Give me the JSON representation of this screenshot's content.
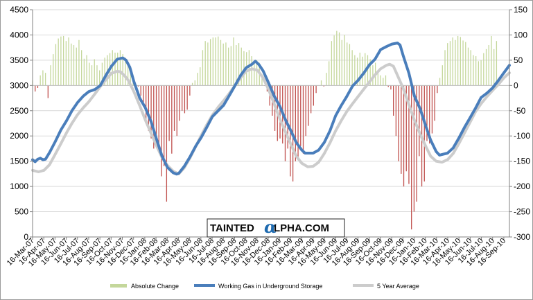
{
  "chart_data": {
    "type": "bar+line",
    "title": "",
    "left_axis": {
      "min": 0,
      "max": 4500,
      "step": 500,
      "ticks": [
        "0",
        "500",
        "1000",
        "1500",
        "2000",
        "2500",
        "3000",
        "3500",
        "4000",
        "4500"
      ]
    },
    "right_axis": {
      "min": -300,
      "max": 150,
      "step": 50,
      "ticks": [
        "-300",
        "-250",
        "-200",
        "-150",
        "-100",
        "-50",
        "0",
        "50",
        "100",
        "150"
      ]
    },
    "grid": true,
    "legend_position": "bottom",
    "x_tick_labels": [
      "16-Mar-07",
      "16-Apr-07",
      "16-May-07",
      "16-Jun-07",
      "16-Jul-07",
      "16-Aug-07",
      "16-Sep-07",
      "16-Oct-07",
      "16-Nov-07",
      "16-Dec-07",
      "16-Jan-08",
      "16-Feb-08",
      "16-Mar-08",
      "16-Apr-08",
      "16-May-08",
      "16-Jun-08",
      "16-Jul-08",
      "16-Aug-08",
      "16-Sep-08",
      "16-Oct-08",
      "16-Nov-08",
      "16-Dec-08",
      "16-Jan-09",
      "16-Feb-09",
      "16-Mar-09",
      "16-Apr-09",
      "16-May-09",
      "16-Jun-09",
      "16-Jul-09",
      "16-Aug-09",
      "16-Sep-09",
      "16-Oct-09",
      "16-Nov-09",
      "16-Dec-09",
      "16-Jan-10",
      "16-Feb-10",
      "16-Mar-10",
      "16-Apr-10",
      "16-May-10",
      "16-Jun-10",
      "16-Jul-10",
      "16-Aug-10",
      "16-Sep-10"
    ],
    "x_range": {
      "start": "2007-03-16",
      "end": "2010-10-01"
    },
    "series": [
      {
        "name": "Working Gas in Underground Storage",
        "type": "line",
        "axis": "left",
        "color": "#4a7ebb",
        "points": [
          [
            "2007-03-16",
            1530
          ],
          [
            "2007-03-23",
            1490
          ],
          [
            "2007-03-30",
            1540
          ],
          [
            "2007-04-06",
            1560
          ],
          [
            "2007-04-13",
            1530
          ],
          [
            "2007-04-20",
            1540
          ],
          [
            "2007-05-01",
            1670
          ],
          [
            "2007-05-16",
            1880
          ],
          [
            "2007-06-01",
            2120
          ],
          [
            "2007-06-16",
            2300
          ],
          [
            "2007-07-01",
            2500
          ],
          [
            "2007-07-16",
            2660
          ],
          [
            "2007-08-01",
            2790
          ],
          [
            "2007-08-16",
            2880
          ],
          [
            "2007-09-01",
            2920
          ],
          [
            "2007-09-16",
            3000
          ],
          [
            "2007-10-01",
            3200
          ],
          [
            "2007-10-16",
            3380
          ],
          [
            "2007-11-01",
            3520
          ],
          [
            "2007-11-16",
            3545
          ],
          [
            "2007-11-25",
            3500
          ],
          [
            "2007-12-05",
            3360
          ],
          [
            "2007-12-16",
            3080
          ],
          [
            "2008-01-01",
            2750
          ],
          [
            "2008-01-16",
            2560
          ],
          [
            "2008-02-01",
            2280
          ],
          [
            "2008-02-16",
            1930
          ],
          [
            "2008-03-01",
            1610
          ],
          [
            "2008-03-16",
            1380
          ],
          [
            "2008-04-01",
            1270
          ],
          [
            "2008-04-10",
            1245
          ],
          [
            "2008-04-16",
            1260
          ],
          [
            "2008-05-01",
            1400
          ],
          [
            "2008-05-16",
            1580
          ],
          [
            "2008-06-01",
            1800
          ],
          [
            "2008-06-16",
            1970
          ],
          [
            "2008-07-01",
            2170
          ],
          [
            "2008-07-16",
            2380
          ],
          [
            "2008-08-01",
            2500
          ],
          [
            "2008-08-16",
            2610
          ],
          [
            "2008-09-01",
            2810
          ],
          [
            "2008-09-16",
            3000
          ],
          [
            "2008-10-01",
            3200
          ],
          [
            "2008-10-16",
            3350
          ],
          [
            "2008-11-01",
            3420
          ],
          [
            "2008-11-10",
            3480
          ],
          [
            "2008-11-20",
            3410
          ],
          [
            "2008-12-01",
            3290
          ],
          [
            "2008-12-16",
            3050
          ],
          [
            "2009-01-01",
            2780
          ],
          [
            "2009-01-16",
            2580
          ],
          [
            "2009-02-01",
            2300
          ],
          [
            "2009-02-16",
            2080
          ],
          [
            "2009-03-01",
            1870
          ],
          [
            "2009-03-16",
            1720
          ],
          [
            "2009-03-25",
            1660
          ],
          [
            "2009-04-16",
            1660
          ],
          [
            "2009-05-01",
            1720
          ],
          [
            "2009-05-16",
            1870
          ],
          [
            "2009-06-01",
            2110
          ],
          [
            "2009-06-16",
            2400
          ],
          [
            "2009-07-01",
            2600
          ],
          [
            "2009-07-16",
            2780
          ],
          [
            "2009-08-01",
            2990
          ],
          [
            "2009-08-16",
            3100
          ],
          [
            "2009-09-01",
            3250
          ],
          [
            "2009-09-16",
            3410
          ],
          [
            "2009-10-01",
            3520
          ],
          [
            "2009-10-16",
            3710
          ],
          [
            "2009-11-01",
            3770
          ],
          [
            "2009-11-16",
            3820
          ],
          [
            "2009-12-01",
            3840
          ],
          [
            "2009-12-08",
            3800
          ],
          [
            "2009-12-16",
            3600
          ],
          [
            "2010-01-01",
            3240
          ],
          [
            "2010-01-16",
            2790
          ],
          [
            "2010-02-01",
            2530
          ],
          [
            "2010-02-16",
            2190
          ],
          [
            "2010-03-01",
            1920
          ],
          [
            "2010-03-16",
            1690
          ],
          [
            "2010-03-25",
            1620
          ],
          [
            "2010-04-16",
            1660
          ],
          [
            "2010-05-01",
            1760
          ],
          [
            "2010-05-16",
            1950
          ],
          [
            "2010-06-01",
            2170
          ],
          [
            "2010-06-16",
            2360
          ],
          [
            "2010-07-01",
            2550
          ],
          [
            "2010-07-16",
            2760
          ],
          [
            "2010-08-01",
            2850
          ],
          [
            "2010-08-16",
            2950
          ],
          [
            "2010-09-01",
            3100
          ],
          [
            "2010-09-16",
            3250
          ],
          [
            "2010-10-01",
            3400
          ]
        ]
      },
      {
        "name": "5 Year Average",
        "type": "line",
        "axis": "left",
        "color": "#cccccc",
        "points": [
          [
            "2007-03-16",
            1320
          ],
          [
            "2007-04-01",
            1290
          ],
          [
            "2007-04-16",
            1320
          ],
          [
            "2007-05-01",
            1430
          ],
          [
            "2007-05-16",
            1630
          ],
          [
            "2007-06-01",
            1850
          ],
          [
            "2007-06-16",
            2060
          ],
          [
            "2007-07-01",
            2250
          ],
          [
            "2007-07-16",
            2420
          ],
          [
            "2007-08-01",
            2560
          ],
          [
            "2007-08-16",
            2680
          ],
          [
            "2007-09-01",
            2830
          ],
          [
            "2007-09-16",
            2980
          ],
          [
            "2007-10-01",
            3110
          ],
          [
            "2007-10-16",
            3240
          ],
          [
            "2007-11-01",
            3280
          ],
          [
            "2007-11-10",
            3270
          ],
          [
            "2007-11-20",
            3200
          ],
          [
            "2007-12-01",
            3100
          ],
          [
            "2007-12-16",
            2880
          ],
          [
            "2008-01-01",
            2600
          ],
          [
            "2008-01-16",
            2320
          ],
          [
            "2008-02-01",
            2050
          ],
          [
            "2008-02-16",
            1800
          ],
          [
            "2008-03-01",
            1580
          ],
          [
            "2008-03-16",
            1420
          ],
          [
            "2008-04-01",
            1300
          ],
          [
            "2008-04-16",
            1250
          ],
          [
            "2008-05-01",
            1370
          ],
          [
            "2008-05-16",
            1560
          ],
          [
            "2008-06-01",
            1790
          ],
          [
            "2008-06-16",
            2010
          ],
          [
            "2008-07-01",
            2220
          ],
          [
            "2008-07-16",
            2410
          ],
          [
            "2008-08-01",
            2570
          ],
          [
            "2008-08-16",
            2700
          ],
          [
            "2008-09-01",
            2850
          ],
          [
            "2008-09-16",
            3000
          ],
          [
            "2008-10-01",
            3150
          ],
          [
            "2008-10-16",
            3280
          ],
          [
            "2008-11-01",
            3330
          ],
          [
            "2008-11-16",
            3300
          ],
          [
            "2008-12-01",
            3150
          ],
          [
            "2008-12-16",
            2920
          ],
          [
            "2009-01-01",
            2620
          ],
          [
            "2009-01-16",
            2330
          ],
          [
            "2009-02-01",
            2060
          ],
          [
            "2009-02-16",
            1810
          ],
          [
            "2009-03-01",
            1600
          ],
          [
            "2009-03-16",
            1460
          ],
          [
            "2009-04-01",
            1390
          ],
          [
            "2009-04-16",
            1400
          ],
          [
            "2009-05-01",
            1480
          ],
          [
            "2009-05-16",
            1650
          ],
          [
            "2009-06-01",
            1870
          ],
          [
            "2009-06-16",
            2100
          ],
          [
            "2009-07-01",
            2300
          ],
          [
            "2009-07-16",
            2480
          ],
          [
            "2009-08-01",
            2640
          ],
          [
            "2009-08-16",
            2780
          ],
          [
            "2009-09-01",
            2930
          ],
          [
            "2009-09-16",
            3070
          ],
          [
            "2009-10-01",
            3210
          ],
          [
            "2009-10-16",
            3330
          ],
          [
            "2009-11-01",
            3400
          ],
          [
            "2009-11-10",
            3420
          ],
          [
            "2009-11-20",
            3380
          ],
          [
            "2009-12-01",
            3200
          ],
          [
            "2009-12-16",
            2950
          ],
          [
            "2010-01-01",
            2620
          ],
          [
            "2010-01-16",
            2310
          ],
          [
            "2010-02-01",
            2030
          ],
          [
            "2010-02-16",
            1790
          ],
          [
            "2010-03-01",
            1600
          ],
          [
            "2010-03-16",
            1500
          ],
          [
            "2010-04-01",
            1480
          ],
          [
            "2010-04-16",
            1530
          ],
          [
            "2010-05-01",
            1650
          ],
          [
            "2010-05-16",
            1840
          ],
          [
            "2010-06-01",
            2060
          ],
          [
            "2010-06-16",
            2270
          ],
          [
            "2010-07-01",
            2480
          ],
          [
            "2010-07-16",
            2640
          ],
          [
            "2010-08-01",
            2780
          ],
          [
            "2010-08-16",
            2900
          ],
          [
            "2010-09-01",
            3020
          ],
          [
            "2010-09-16",
            3150
          ],
          [
            "2010-10-01",
            3250
          ]
        ]
      },
      {
        "name": "Absolute Change",
        "type": "bar",
        "axis": "right",
        "color_positive": "#c4d79b",
        "color_negative": "#c0504d",
        "start": "2007-03-16",
        "step_days": 7,
        "values": [
          10,
          -12,
          -5,
          20,
          30,
          25,
          -25,
          40,
          62,
          82,
          93,
          97,
          98,
          88,
          95,
          83,
          80,
          75,
          90,
          70,
          53,
          60,
          45,
          40,
          52,
          40,
          30,
          45,
          55,
          60,
          64,
          70,
          65,
          65,
          70,
          62,
          55,
          38,
          38,
          15,
          -3,
          -2,
          -20,
          -42,
          -75,
          -90,
          -105,
          -125,
          -120,
          -115,
          -180,
          -160,
          -230,
          -110,
          -135,
          -90,
          -100,
          -70,
          -50,
          -55,
          -48,
          -20,
          5,
          10,
          25,
          36,
          70,
          88,
          85,
          92,
          95,
          95,
          97,
          90,
          83,
          85,
          75,
          78,
          95,
          80,
          84,
          75,
          68,
          66,
          70,
          58,
          50,
          50,
          45,
          22,
          -1,
          -12,
          -40,
          -60,
          -90,
          -110,
          -105,
          -115,
          -150,
          -125,
          -180,
          -190,
          -150,
          -145,
          -120,
          -135,
          -100,
          -80,
          -55,
          -40,
          -15,
          0,
          10,
          -2,
          25,
          48,
          88,
          99,
          108,
          105,
          90,
          100,
          85,
          82,
          70,
          60,
          55,
          65,
          57,
          64,
          60,
          52,
          40,
          45,
          30,
          20,
          15,
          20,
          -3,
          -8,
          -60,
          -100,
          -150,
          -175,
          -200,
          -170,
          -195,
          -285,
          -250,
          -230,
          -140,
          -200,
          -190,
          -110,
          -115,
          -95,
          -70,
          -15,
          15,
          40,
          70,
          84,
          88,
          95,
          90,
          98,
          96,
          89,
          86,
          75,
          70,
          60,
          58,
          48,
          50,
          64,
          72,
          80,
          98,
          72,
          88
        ]
      }
    ]
  },
  "legend": {
    "items": [
      {
        "label": "Absolute Change",
        "color": "#c4d79b"
      },
      {
        "label": "Working Gas in Underground Storage",
        "color": "#4a7ebb"
      },
      {
        "label": "5 Year Average",
        "color": "#cccccc"
      }
    ]
  },
  "watermark": {
    "pre": "TAINTED",
    "alpha": "α",
    "post": "LPHA.COM"
  }
}
